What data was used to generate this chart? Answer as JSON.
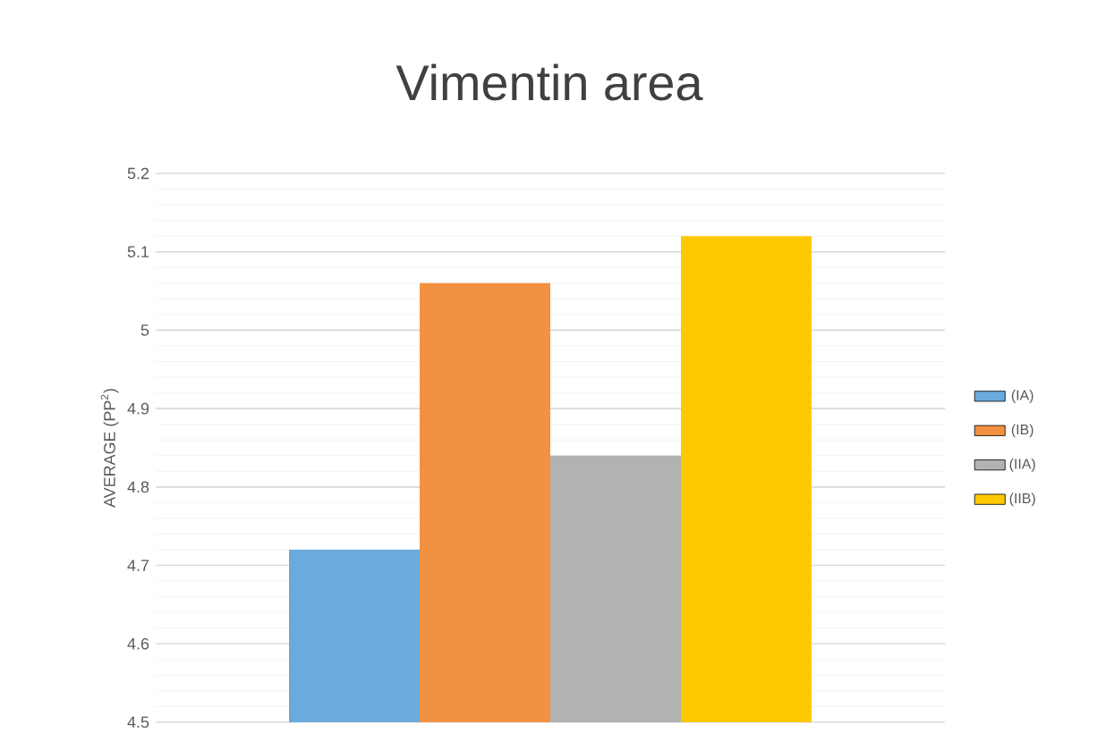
{
  "chart_data": {
    "type": "bar",
    "title": "Vimentin area",
    "ylabel": "AVERAGE (PP$^{2}$)",
    "categories": [
      null
    ],
    "series": [
      {
        "name": "(IA)",
        "color": "#6aaadc",
        "values": [
          4.72
        ]
      },
      {
        "name": "(IB)",
        "color": "#f29141",
        "values": [
          5.06
        ]
      },
      {
        "name": "(IIA)",
        "color": "#b2b2b2",
        "values": [
          4.84
        ]
      },
      {
        "name": "(IIB)",
        "color": "#fec800",
        "values": [
          5.12
        ]
      }
    ],
    "ylim": [
      4.5,
      5.2
    ],
    "yticks": [
      4.5,
      4.6,
      4.7,
      4.8,
      4.9,
      5,
      5.1,
      5.2
    ],
    "grid": "y",
    "legend": "right"
  }
}
